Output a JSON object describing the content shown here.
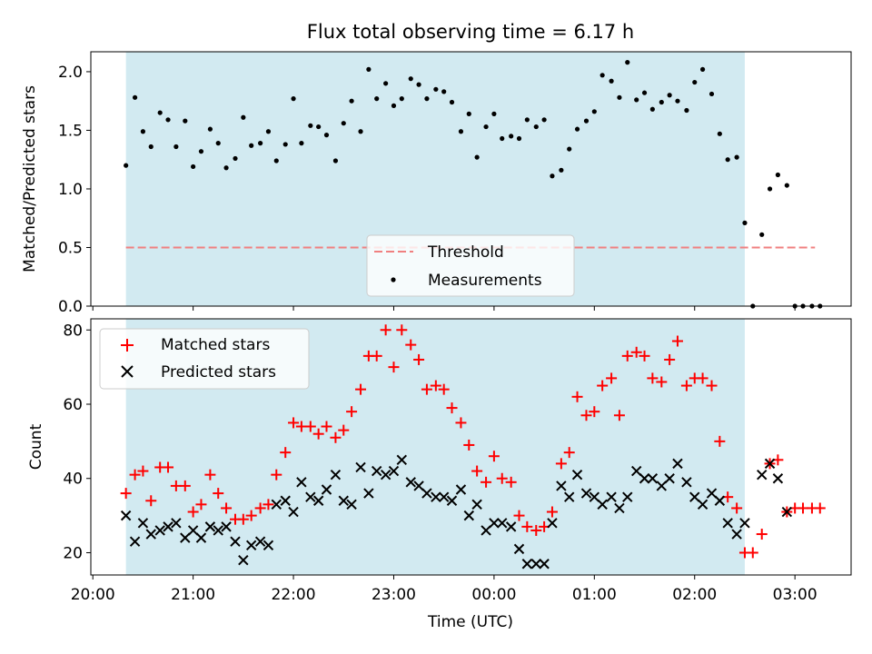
{
  "chart_data": [
    {
      "type": "scatter",
      "title": "Flux total observing time = 6.17 h",
      "xlabel": "",
      "ylabel": "Matched/Predicted stars",
      "ylim": [
        0,
        2.17
      ],
      "yticks": [
        0.0,
        0.5,
        1.0,
        1.5,
        2.0
      ],
      "ytick_labels": [
        "0.0",
        "0.5",
        "1.0",
        "1.5",
        "2.0"
      ],
      "shaded_span_hours": [
        20.33,
        26.5
      ],
      "threshold": {
        "name": "Threshold",
        "value": 0.5,
        "x_range_hours": [
          20.33,
          27.2
        ],
        "color": "#f08080"
      },
      "legend": {
        "position": "bottom-center",
        "entries": [
          "Threshold",
          "Measurements"
        ]
      },
      "series": [
        {
          "name": "Measurements",
          "color": "#000000",
          "x_hours": [
            20.33,
            20.42,
            20.5,
            20.58,
            20.67,
            20.75,
            20.83,
            20.92,
            21.0,
            21.08,
            21.17,
            21.25,
            21.33,
            21.42,
            21.5,
            21.58,
            21.67,
            21.75,
            21.83,
            21.92,
            22.0,
            22.08,
            22.17,
            22.25,
            22.33,
            22.42,
            22.5,
            22.58,
            22.67,
            22.75,
            22.83,
            22.92,
            23.0,
            23.08,
            23.17,
            23.25,
            23.33,
            23.42,
            23.5,
            23.58,
            23.67,
            23.75,
            23.83,
            23.92,
            24.0,
            24.08,
            24.17,
            24.25,
            24.33,
            24.42,
            24.5,
            24.58,
            24.67,
            24.75,
            24.83,
            24.92,
            25.0,
            25.08,
            25.17,
            25.25,
            25.33,
            25.42,
            25.5,
            25.58,
            25.67,
            25.75,
            25.83,
            25.92,
            26.0,
            26.08,
            26.17,
            26.25,
            26.33,
            26.42,
            26.5,
            26.58,
            26.67,
            26.75,
            26.83,
            26.92,
            27.0,
            27.08,
            27.17,
            27.25
          ],
          "y": [
            1.2,
            1.78,
            1.49,
            1.36,
            1.65,
            1.59,
            1.36,
            1.58,
            1.19,
            1.32,
            1.51,
            1.39,
            1.18,
            1.26,
            1.61,
            1.37,
            1.39,
            1.49,
            1.24,
            1.38,
            1.77,
            1.39,
            1.54,
            1.53,
            1.46,
            1.24,
            1.56,
            1.75,
            1.49,
            2.02,
            1.77,
            1.9,
            1.71,
            1.77,
            1.94,
            1.89,
            1.77,
            1.85,
            1.83,
            1.74,
            1.49,
            1.64,
            1.27,
            1.53,
            1.64,
            1.43,
            1.45,
            1.43,
            1.59,
            1.53,
            1.59,
            1.11,
            1.16,
            1.34,
            1.51,
            1.58,
            1.66,
            1.97,
            1.92,
            1.78,
            2.08,
            1.76,
            1.82,
            1.68,
            1.74,
            1.8,
            1.75,
            1.67,
            1.91,
            2.02,
            1.81,
            1.47,
            1.25,
            1.27,
            0.71,
            0.0,
            0.61,
            1.0,
            1.12,
            1.03,
            0.0,
            0.0,
            0.0,
            0.0
          ]
        }
      ]
    },
    {
      "type": "scatter",
      "title": "",
      "xlabel": "Time (UTC)",
      "ylabel": "Count",
      "xlim_hours": [
        19.98,
        27.56
      ],
      "ylim": [
        14,
        83
      ],
      "yticks": [
        20,
        40,
        60,
        80
      ],
      "ytick_labels": [
        "20",
        "40",
        "60",
        "80"
      ],
      "xticks_hours": [
        20,
        21,
        22,
        23,
        24,
        25,
        26,
        27
      ],
      "xtick_labels": [
        "20:00",
        "21:00",
        "22:00",
        "23:00",
        "00:00",
        "01:00",
        "02:00",
        "03:00"
      ],
      "shaded_span_hours": [
        20.33,
        26.5
      ],
      "legend": {
        "position": "top-left",
        "entries": [
          "Matched stars",
          "Predicted stars"
        ]
      },
      "series": [
        {
          "name": "Matched stars",
          "marker": "+",
          "color": "#ff0000",
          "x_hours": [
            20.33,
            20.42,
            20.5,
            20.58,
            20.67,
            20.75,
            20.83,
            20.92,
            21.0,
            21.08,
            21.17,
            21.25,
            21.33,
            21.42,
            21.5,
            21.58,
            21.67,
            21.75,
            21.83,
            21.92,
            22.0,
            22.08,
            22.17,
            22.25,
            22.33,
            22.42,
            22.5,
            22.58,
            22.67,
            22.75,
            22.83,
            22.92,
            23.0,
            23.08,
            23.17,
            23.25,
            23.33,
            23.42,
            23.5,
            23.58,
            23.67,
            23.75,
            23.83,
            23.92,
            24.0,
            24.08,
            24.17,
            24.25,
            24.33,
            24.42,
            24.5,
            24.58,
            24.67,
            24.75,
            24.83,
            24.92,
            25.0,
            25.08,
            25.17,
            25.25,
            25.33,
            25.42,
            25.5,
            25.58,
            25.67,
            25.75,
            25.83,
            25.92,
            26.0,
            26.08,
            26.17,
            26.25,
            26.33,
            26.42,
            26.5,
            26.58,
            26.67,
            26.75,
            26.83,
            26.92,
            27.0,
            27.08,
            27.17,
            27.25
          ],
          "y": [
            36,
            41,
            42,
            34,
            43,
            43,
            38,
            38,
            31,
            33,
            41,
            36,
            32,
            29,
            29,
            30,
            32,
            33,
            41,
            47,
            55,
            54,
            54,
            52,
            54,
            51,
            53,
            58,
            64,
            73,
            73,
            80,
            70,
            80,
            76,
            72,
            64,
            65,
            64,
            59,
            55,
            49,
            42,
            39,
            46,
            40,
            39,
            30,
            27,
            26,
            27,
            31,
            44,
            47,
            62,
            57,
            58,
            65,
            67,
            57,
            73,
            74,
            73,
            67,
            66,
            72,
            77,
            65,
            67,
            67,
            65,
            50,
            35,
            32,
            20,
            20,
            25,
            44,
            45,
            31,
            32,
            32,
            32,
            32
          ]
        },
        {
          "name": "Predicted stars",
          "marker": "x",
          "color": "#000000",
          "x_hours": [
            20.33,
            20.42,
            20.5,
            20.58,
            20.67,
            20.75,
            20.83,
            20.92,
            21.0,
            21.08,
            21.17,
            21.25,
            21.33,
            21.42,
            21.5,
            21.58,
            21.67,
            21.75,
            21.83,
            21.92,
            22.0,
            22.08,
            22.17,
            22.25,
            22.33,
            22.42,
            22.5,
            22.58,
            22.67,
            22.75,
            22.83,
            22.92,
            23.0,
            23.08,
            23.17,
            23.25,
            23.33,
            23.42,
            23.5,
            23.58,
            23.67,
            23.75,
            23.83,
            23.92,
            24.0,
            24.08,
            24.17,
            24.25,
            24.33,
            24.42,
            24.5,
            24.58,
            24.67,
            24.75,
            24.83,
            24.92,
            25.0,
            25.08,
            25.17,
            25.25,
            25.33,
            25.42,
            25.5,
            25.58,
            25.67,
            25.75,
            25.83,
            25.92,
            26.0,
            26.08,
            26.17,
            26.25,
            26.33,
            26.42,
            26.5,
            26.67,
            26.75,
            26.83,
            26.92
          ],
          "y": [
            30,
            23,
            28,
            25,
            26,
            27,
            28,
            24,
            26,
            24,
            27,
            26,
            27,
            23,
            18,
            22,
            23,
            22,
            33,
            34,
            31,
            39,
            35,
            34,
            37,
            41,
            34,
            33,
            43,
            36,
            42,
            41,
            42,
            45,
            39,
            38,
            36,
            35,
            35,
            34,
            37,
            30,
            33,
            26,
            28,
            28,
            27,
            21,
            17,
            17,
            17,
            28,
            38,
            35,
            41,
            36,
            35,
            33,
            35,
            32,
            35,
            42,
            40,
            40,
            38,
            40,
            44,
            39,
            35,
            33,
            36,
            34,
            28,
            25,
            28,
            41,
            44,
            40,
            31
          ]
        }
      ]
    }
  ]
}
